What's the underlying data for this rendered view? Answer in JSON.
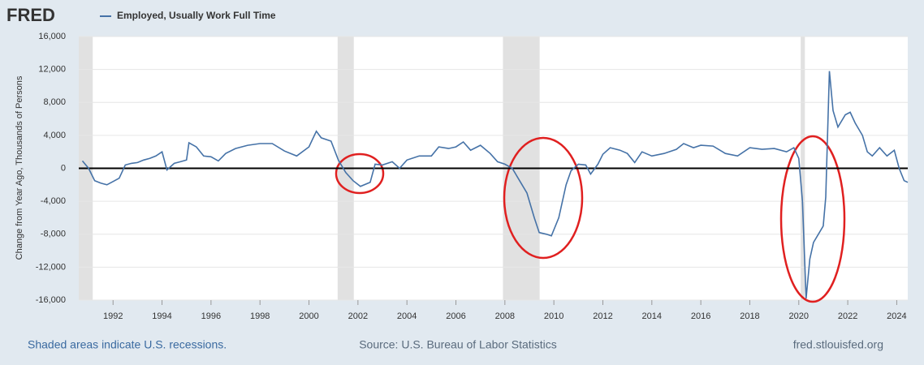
{
  "chart_data": {
    "type": "line",
    "brand": "FRED",
    "ylabel": "Change from Year Ago, Thousands of Persons",
    "footer_left": "Shaded areas indicate U.S. recessions.",
    "footer_center": "Source: U.S. Bureau of Labor Statistics",
    "footer_right": "fred.stlouisfed.org",
    "grid": true,
    "legend": "top-left",
    "recessions": [
      [
        1990.58,
        1991.17
      ],
      [
        2001.17,
        2001.83
      ],
      [
        2007.92,
        2009.42
      ],
      [
        2020.08,
        2020.25
      ]
    ],
    "xlim": [
      1990.6,
      2024.45
    ],
    "xticks": [
      1992,
      1994,
      1996,
      1998,
      2000,
      2002,
      2004,
      2006,
      2008,
      2010,
      2012,
      2014,
      2016,
      2018,
      2020,
      2022,
      2024
    ],
    "ylim": [
      -16000,
      16000
    ],
    "yticks": [
      {
        "value": -16000,
        "label": "-16,000"
      },
      {
        "value": -12000,
        "label": "-12,000"
      },
      {
        "value": -8000,
        "label": "-8,000"
      },
      {
        "value": -4000,
        "label": "-4,000"
      },
      0,
      {
        "value": 4000,
        "label": "4,000"
      },
      {
        "value": 8000,
        "label": "8,000"
      },
      {
        "value": 12000,
        "label": "12,000"
      },
      {
        "value": 16000,
        "label": "16,000"
      }
    ],
    "x": [
      1990.75,
      1991.0,
      1991.25,
      1991.5,
      1991.75,
      1992.0,
      1992.25,
      1992.5,
      1992.75,
      1993.0,
      1993.25,
      1993.5,
      1993.75,
      1994.0,
      1994.2,
      1994.5,
      1994.75,
      1995.0,
      1995.1,
      1995.4,
      1995.7,
      1996.0,
      1996.3,
      1996.6,
      1997.0,
      1997.5,
      1998.0,
      1998.5,
      1999.0,
      1999.5,
      2000.0,
      2000.3,
      2000.5,
      2000.9,
      2001.2,
      2001.5,
      2001.8,
      2002.1,
      2002.5,
      2002.7,
      2003.0,
      2003.4,
      2003.7,
      2004.0,
      2004.5,
      2005.0,
      2005.3,
      2005.7,
      2006.0,
      2006.3,
      2006.6,
      2007.0,
      2007.4,
      2007.7,
      2008.0,
      2008.3,
      2008.6,
      2008.9,
      2009.2,
      2009.4,
      2009.7,
      2009.9,
      2010.2,
      2010.5,
      2010.7,
      2011.0,
      2011.3,
      2011.5,
      2011.8,
      2012.0,
      2012.3,
      2012.7,
      2013.0,
      2013.3,
      2013.6,
      2014.0,
      2014.5,
      2015.0,
      2015.3,
      2015.7,
      2016.0,
      2016.5,
      2017.0,
      2017.5,
      2018.0,
      2018.5,
      2019.0,
      2019.5,
      2019.8,
      2020.0,
      2020.15,
      2020.3,
      2020.45,
      2020.6,
      2020.8,
      2021.0,
      2021.1,
      2021.25,
      2021.4,
      2021.6,
      2021.9,
      2022.1,
      2022.3,
      2022.6,
      2022.8,
      2023.0,
      2023.3,
      2023.6,
      2023.9,
      2024.1,
      2024.3,
      2024.45
    ],
    "series": [
      {
        "name": "Employed, Usually Work Full Time",
        "color": "#4572a7",
        "values": [
          900,
          0,
          -1500,
          -1800,
          -2000,
          -1600,
          -1200,
          400,
          600,
          700,
          1000,
          1200,
          1500,
          2000,
          -200,
          600,
          800,
          1000,
          3100,
          2600,
          1500,
          1400,
          900,
          1800,
          2400,
          2800,
          3000,
          3000,
          2100,
          1500,
          2600,
          4500,
          3700,
          3300,
          1000,
          -500,
          -1500,
          -2200,
          -1700,
          500,
          400,
          800,
          0,
          1000,
          1500,
          1500,
          2600,
          2400,
          2600,
          3200,
          2200,
          2800,
          1800,
          800,
          500,
          0,
          -1500,
          -3000,
          -6000,
          -7800,
          -8000,
          -8200,
          -6000,
          -2000,
          -300,
          500,
          400,
          -700,
          500,
          1700,
          2500,
          2200,
          1800,
          700,
          2000,
          1500,
          1800,
          2300,
          3000,
          2500,
          2800,
          2700,
          1800,
          1500,
          2500,
          2300,
          2400,
          2000,
          2500,
          1200,
          -4000,
          -15800,
          -11000,
          -9000,
          -8000,
          -7000,
          -3500,
          11800,
          7000,
          5000,
          6500,
          6800,
          5500,
          4000,
          2000,
          1500,
          2500,
          1500,
          2200,
          0,
          -1500,
          -1700
        ]
      }
    ]
  }
}
